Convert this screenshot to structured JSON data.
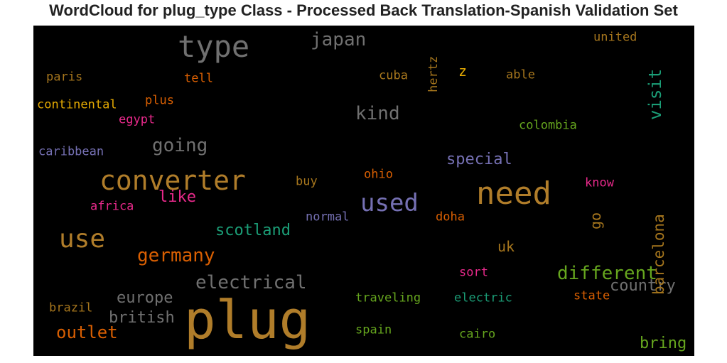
{
  "chart_data": {
    "type": "wordcloud",
    "title": "WordCloud for plug_type Class - Processed Back Translation-Spanish Validation Set",
    "background": "#000000",
    "words": [
      {
        "text": "plug",
        "color": "#b07d2a"
      },
      {
        "text": "need",
        "color": "#b07d2a"
      },
      {
        "text": "type",
        "color": "#707070"
      },
      {
        "text": "converter",
        "color": "#b07d2a"
      },
      {
        "text": "use",
        "color": "#b07d2a"
      },
      {
        "text": "used",
        "color": "#7570b3"
      },
      {
        "text": "japan",
        "color": "#707070"
      },
      {
        "text": "kind",
        "color": "#707070"
      },
      {
        "text": "going",
        "color": "#707070"
      },
      {
        "text": "electrical",
        "color": "#707070"
      },
      {
        "text": "germany",
        "color": "#d95f02"
      },
      {
        "text": "different",
        "color": "#66a61e"
      },
      {
        "text": "outlet",
        "color": "#d95f02"
      },
      {
        "text": "scotland",
        "color": "#1b9e77"
      },
      {
        "text": "europe",
        "color": "#707070"
      },
      {
        "text": "british",
        "color": "#707070"
      },
      {
        "text": "country",
        "color": "#707070"
      },
      {
        "text": "visit",
        "color": "#1b9e77"
      },
      {
        "text": "barcelona",
        "color": "#a6761d"
      },
      {
        "text": "special",
        "color": "#7570b3"
      },
      {
        "text": "like",
        "color": "#e7298a"
      },
      {
        "text": "bring",
        "color": "#66a61e"
      },
      {
        "text": "uk",
        "color": "#a6761d"
      },
      {
        "text": "go",
        "color": "#a6761d"
      },
      {
        "text": "z",
        "color": "#e6ab02"
      },
      {
        "text": "hertz",
        "color": "#a6761d"
      },
      {
        "text": "united",
        "color": "#a6761d"
      },
      {
        "text": "paris",
        "color": "#a6761d"
      },
      {
        "text": "tell",
        "color": "#d95f02"
      },
      {
        "text": "cuba",
        "color": "#a6761d"
      },
      {
        "text": "able",
        "color": "#a6761d"
      },
      {
        "text": "continental",
        "color": "#e6ab02"
      },
      {
        "text": "plus",
        "color": "#d95f02"
      },
      {
        "text": "egypt",
        "color": "#e7298a"
      },
      {
        "text": "colombia",
        "color": "#66a61e"
      },
      {
        "text": "caribbean",
        "color": "#7570b3"
      },
      {
        "text": "ohio",
        "color": "#d95f02"
      },
      {
        "text": "buy",
        "color": "#a6761d"
      },
      {
        "text": "know",
        "color": "#e7298a"
      },
      {
        "text": "africa",
        "color": "#e7298a"
      },
      {
        "text": "normal",
        "color": "#7570b3"
      },
      {
        "text": "doha",
        "color": "#d95f02"
      },
      {
        "text": "sort",
        "color": "#e7298a"
      },
      {
        "text": "traveling",
        "color": "#66a61e"
      },
      {
        "text": "electric",
        "color": "#1b9e77"
      },
      {
        "text": "state",
        "color": "#d95f02"
      },
      {
        "text": "brazil",
        "color": "#a6761d"
      },
      {
        "text": "spain",
        "color": "#66a61e"
      },
      {
        "text": "cairo",
        "color": "#66a61e"
      }
    ]
  }
}
